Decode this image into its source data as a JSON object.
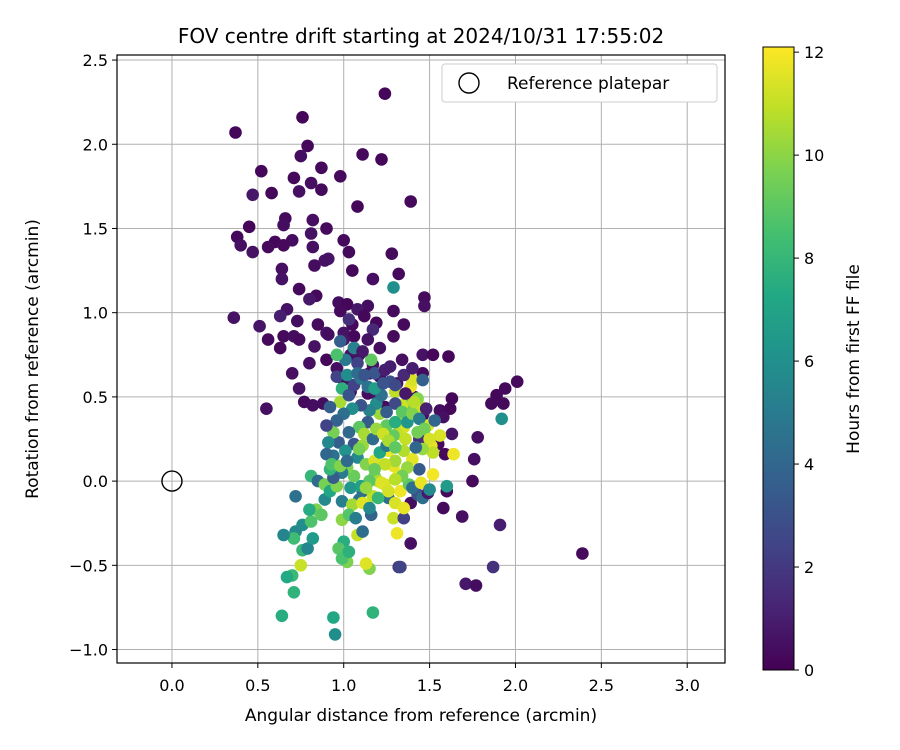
{
  "chart_data": {
    "type": "scatter",
    "title": "FOV centre drift starting at 2024/10/31 17:55:02",
    "xlabel": "Angular distance from reference (arcmin)",
    "ylabel": "Rotation from reference (arcmin)",
    "xlim": [
      -0.32,
      3.22
    ],
    "ylim": [
      -1.08,
      2.53
    ],
    "xticks": [
      0.0,
      0.5,
      1.0,
      1.5,
      2.0,
      2.5,
      3.0
    ],
    "xtick_labels": [
      "0.0",
      "0.5",
      "1.0",
      "1.5",
      "2.0",
      "2.5",
      "3.0"
    ],
    "yticks": [
      -1.0,
      -0.5,
      0.0,
      0.5,
      1.0,
      1.5,
      2.0,
      2.5
    ],
    "ytick_labels": [
      "−1.0",
      "−0.5",
      "0.0",
      "0.5",
      "1.0",
      "1.5",
      "2.0",
      "2.5"
    ],
    "grid": true,
    "legend": {
      "position": "top-right",
      "entries": [
        "Reference platepar"
      ]
    },
    "reference_point": {
      "x": 0.0,
      "y": 0.0,
      "label": "Reference platepar"
    },
    "colorbar": {
      "label": "Hours from first FF file",
      "min": 0,
      "max": 12.1,
      "ticks": [
        0,
        2,
        4,
        6,
        8,
        10,
        12
      ],
      "tick_labels": [
        "0",
        "2",
        "4",
        "6",
        "8",
        "10",
        "12"
      ],
      "colormap": "viridis"
    },
    "points": [
      [
        1.24,
        2.3,
        0.2
      ],
      [
        0.76,
        2.16,
        0.2
      ],
      [
        0.37,
        2.07,
        0.2
      ],
      [
        0.79,
        1.99,
        0.2
      ],
      [
        1.11,
        1.94,
        0.3
      ],
      [
        1.22,
        1.91,
        0.2
      ],
      [
        0.75,
        1.93,
        0.4
      ],
      [
        0.52,
        1.84,
        0.2
      ],
      [
        0.87,
        1.86,
        0.3
      ],
      [
        0.71,
        1.8,
        0.3
      ],
      [
        0.98,
        1.81,
        0.3
      ],
      [
        0.47,
        1.7,
        0.8
      ],
      [
        0.58,
        1.71,
        0.2
      ],
      [
        0.74,
        1.72,
        0.5
      ],
      [
        0.87,
        1.73,
        0.3
      ],
      [
        0.81,
        1.77,
        0.5
      ],
      [
        1.39,
        1.66,
        0.3
      ],
      [
        1.08,
        1.63,
        0.2
      ],
      [
        0.66,
        1.56,
        0.3
      ],
      [
        0.82,
        1.55,
        0.5
      ],
      [
        0.65,
        1.52,
        0.4
      ],
      [
        0.9,
        1.5,
        0.3
      ],
      [
        0.45,
        1.51,
        0.2
      ],
      [
        0.81,
        1.47,
        0.6
      ],
      [
        0.38,
        1.45,
        0.2
      ],
      [
        0.6,
        1.42,
        0.2
      ],
      [
        0.7,
        1.43,
        0.4
      ],
      [
        0.65,
        1.4,
        0.3
      ],
      [
        0.4,
        1.4,
        0.5
      ],
      [
        0.47,
        1.36,
        0.6
      ],
      [
        0.56,
        1.39,
        0.3
      ],
      [
        0.82,
        1.39,
        0.5
      ],
      [
        1.0,
        1.43,
        0.3
      ],
      [
        0.91,
        1.32,
        0.7
      ],
      [
        1.03,
        1.36,
        0.3
      ],
      [
        0.83,
        1.28,
        0.4
      ],
      [
        1.28,
        1.35,
        0.3
      ],
      [
        0.89,
        1.31,
        0.6
      ],
      [
        0.64,
        1.26,
        0.5
      ],
      [
        1.32,
        1.23,
        0.3
      ],
      [
        1.05,
        1.25,
        0.2
      ],
      [
        0.64,
        1.2,
        0.6
      ],
      [
        1.17,
        1.2,
        0.5
      ],
      [
        0.74,
        1.14,
        0.3
      ],
      [
        1.29,
        1.15,
        6.0
      ],
      [
        0.84,
        1.1,
        0.3
      ],
      [
        1.47,
        1.09,
        0.3
      ],
      [
        0.8,
        1.08,
        0.8
      ],
      [
        0.97,
        1.06,
        0.4
      ],
      [
        1.02,
        1.05,
        0.2
      ],
      [
        1.14,
        1.04,
        0.4
      ],
      [
        0.98,
        1.01,
        0.3
      ],
      [
        1.08,
        1.02,
        0.8
      ],
      [
        1.12,
        0.98,
        0.2
      ],
      [
        1.29,
        1.01,
        0.3
      ],
      [
        1.47,
        1.04,
        0.5
      ],
      [
        0.67,
        1.02,
        0.6
      ],
      [
        0.73,
        0.95,
        0.4
      ],
      [
        1.05,
        0.93,
        0.3
      ],
      [
        1.19,
        0.94,
        0.2
      ],
      [
        0.36,
        0.97,
        0.6
      ],
      [
        0.63,
        0.98,
        1.0
      ],
      [
        0.85,
        0.93,
        0.3
      ],
      [
        1.03,
        0.96,
        1.6
      ],
      [
        0.51,
        0.92,
        0.7
      ],
      [
        0.9,
        0.88,
        0.7
      ],
      [
        1.17,
        0.9,
        1.4
      ],
      [
        1.0,
        0.88,
        0.6
      ],
      [
        1.35,
        0.93,
        0.3
      ],
      [
        1.06,
        0.86,
        0.2
      ],
      [
        0.65,
        0.86,
        0.3
      ],
      [
        0.71,
        0.86,
        0.4
      ],
      [
        1.0,
        0.84,
        0.7
      ],
      [
        1.14,
        0.84,
        0.6
      ],
      [
        1.29,
        0.86,
        0.3
      ],
      [
        0.56,
        0.84,
        0.3
      ],
      [
        0.74,
        0.84,
        0.3
      ],
      [
        0.63,
        0.79,
        0.2
      ],
      [
        0.83,
        0.8,
        0.6
      ],
      [
        1.06,
        0.79,
        0.2
      ],
      [
        1.21,
        0.79,
        0.4
      ],
      [
        1.04,
        0.75,
        0.5
      ],
      [
        1.09,
        0.75,
        0.5
      ],
      [
        1.46,
        0.75,
        0.6
      ],
      [
        1.52,
        0.75,
        0.2
      ],
      [
        1.61,
        0.74,
        0.2
      ],
      [
        1.34,
        0.72,
        0.5
      ],
      [
        0.9,
        0.72,
        0.2
      ],
      [
        0.8,
        0.7,
        0.5
      ],
      [
        1.17,
        0.69,
        0.7
      ],
      [
        1.27,
        0.68,
        1.0
      ],
      [
        0.96,
        0.67,
        0.5
      ],
      [
        0.7,
        0.64,
        0.5
      ],
      [
        1.15,
        0.64,
        0.4
      ],
      [
        1.21,
        0.62,
        0.5
      ],
      [
        1.46,
        0.64,
        0.3
      ],
      [
        1.0,
        0.6,
        0.6
      ],
      [
        1.31,
        0.58,
        0.3
      ],
      [
        0.74,
        0.55,
        0.6
      ],
      [
        1.04,
        0.53,
        0.3
      ],
      [
        1.14,
        0.52,
        0.4
      ],
      [
        1.63,
        0.49,
        0.2
      ],
      [
        1.41,
        0.5,
        0.5
      ],
      [
        1.2,
        0.49,
        0.8
      ],
      [
        1.89,
        0.51,
        0.2
      ],
      [
        1.93,
        0.46,
        0.3
      ],
      [
        0.77,
        0.47,
        0.3
      ],
      [
        0.82,
        0.45,
        0.4
      ],
      [
        0.88,
        0.46,
        0.4
      ],
      [
        0.55,
        0.43,
        0.5
      ],
      [
        1.24,
        0.44,
        0.3
      ],
      [
        1.56,
        0.42,
        0.4
      ],
      [
        1.62,
        0.43,
        0.2
      ],
      [
        1.58,
        0.38,
        0.5
      ],
      [
        1.46,
        0.39,
        0.4
      ],
      [
        2.01,
        0.59,
        0.3
      ],
      [
        1.94,
        0.55,
        0.3
      ],
      [
        1.86,
        0.46,
        0.3
      ],
      [
        1.92,
        0.37,
        6.0
      ],
      [
        1.78,
        0.26,
        0.5
      ],
      [
        1.63,
        0.28,
        0.7
      ],
      [
        1.55,
        0.22,
        0.3
      ],
      [
        1.44,
        0.25,
        1.6
      ],
      [
        1.59,
        0.16,
        0.3
      ],
      [
        1.76,
        0.13,
        0.5
      ],
      [
        1.75,
        0.0,
        0.3
      ],
      [
        1.6,
        -0.06,
        0.3
      ],
      [
        1.58,
        -0.16,
        0.3
      ],
      [
        1.69,
        -0.21,
        0.5
      ],
      [
        1.91,
        -0.26,
        1.0
      ],
      [
        1.87,
        -0.51,
        1.7
      ],
      [
        1.71,
        -0.61,
        0.8
      ],
      [
        1.77,
        -0.62,
        0.4
      ],
      [
        2.39,
        -0.43,
        0.3
      ],
      [
        1.39,
        -0.37,
        0.5
      ],
      [
        1.32,
        -0.51,
        2.0
      ],
      [
        1.33,
        -0.51,
        2.4
      ],
      [
        1.15,
        -0.52,
        9.8
      ],
      [
        1.13,
        -0.49,
        11.5
      ],
      [
        1.17,
        -0.78,
        7.8
      ],
      [
        0.95,
        -0.91,
        5.9
      ],
      [
        0.94,
        -0.81,
        7.2
      ],
      [
        0.71,
        -0.66,
        7.8
      ],
      [
        0.64,
        -0.8,
        7.5
      ],
      [
        0.7,
        -0.56,
        8.1
      ],
      [
        0.72,
        -0.3,
        5.6
      ],
      [
        0.76,
        -0.26,
        5.8
      ],
      [
        0.71,
        -0.34,
        8.3
      ],
      [
        0.67,
        -0.57,
        7.3
      ],
      [
        0.75,
        -0.5,
        11.1
      ],
      [
        0.65,
        -0.32,
        5.4
      ],
      [
        0.76,
        -0.41,
        8.0
      ],
      [
        0.79,
        -0.4,
        5.5
      ],
      [
        0.82,
        -0.34,
        6.5
      ],
      [
        0.81,
        -0.24,
        8.7
      ],
      [
        0.84,
        -0.17,
        9.7
      ],
      [
        0.87,
        -0.2,
        9.0
      ],
      [
        0.8,
        -0.17,
        7.4
      ],
      [
        0.72,
        -0.09,
        4.5
      ],
      [
        0.81,
        0.03,
        8.0
      ],
      [
        0.85,
        0.0,
        4.2
      ],
      [
        0.89,
        -0.02,
        9.6
      ],
      [
        0.89,
        -0.11,
        5.6
      ],
      [
        0.92,
        -0.06,
        7.2
      ],
      [
        0.96,
        -0.03,
        9.8
      ],
      [
        0.99,
        -0.12,
        5.2
      ],
      [
        1.04,
        -0.04,
        6.3
      ],
      [
        0.99,
        -0.23,
        10.0
      ],
      [
        1.0,
        -0.36,
        7.5
      ],
      [
        1.02,
        -0.48,
        9.7
      ],
      [
        0.97,
        -0.4,
        8.9
      ],
      [
        0.99,
        -0.46,
        8.6
      ],
      [
        1.03,
        -0.42,
        7.7
      ],
      [
        1.08,
        -0.32,
        11.0
      ],
      [
        1.11,
        -0.3,
        4.3
      ],
      [
        1.16,
        -0.2,
        3.8
      ],
      [
        1.11,
        -0.06,
        3.9
      ],
      [
        1.17,
        -0.09,
        10.9
      ],
      [
        1.26,
        -0.1,
        4.4
      ],
      [
        1.3,
        -0.13,
        11.4
      ],
      [
        1.33,
        -0.06,
        11.8
      ],
      [
        1.29,
        -0.22,
        11.1
      ],
      [
        1.31,
        -0.31,
        11.8
      ],
      [
        1.35,
        -0.22,
        2.3
      ],
      [
        1.39,
        -0.13,
        0.4
      ],
      [
        1.43,
        -0.08,
        3.0
      ],
      [
        1.38,
        -0.02,
        9.0
      ],
      [
        1.32,
        0.04,
        11.9
      ],
      [
        1.29,
        0.09,
        11.6
      ],
      [
        1.24,
        -0.02,
        11.4
      ],
      [
        1.18,
        0.03,
        9.6
      ],
      [
        1.26,
        0.18,
        11.9
      ],
      [
        1.4,
        0.13,
        11.6
      ],
      [
        1.44,
        0.07,
        3.4
      ],
      [
        1.46,
        -0.1,
        4.3
      ],
      [
        1.49,
        -0.07,
        0.8
      ],
      [
        1.52,
        0.04,
        11.9
      ],
      [
        1.56,
        0.27,
        11.4
      ],
      [
        1.51,
        0.21,
        11.7
      ],
      [
        1.49,
        0.33,
        11.5
      ],
      [
        1.43,
        0.29,
        9.5
      ],
      [
        1.45,
        0.44,
        11.2
      ],
      [
        1.43,
        0.49,
        9.9
      ],
      [
        1.38,
        0.46,
        9.5
      ],
      [
        1.34,
        0.45,
        11.2
      ],
      [
        1.39,
        0.56,
        11.8
      ],
      [
        1.4,
        0.6,
        11.4
      ],
      [
        1.3,
        0.53,
        10.9
      ],
      [
        1.27,
        0.59,
        3.0
      ],
      [
        1.34,
        0.37,
        11.2
      ],
      [
        1.35,
        0.32,
        11.3
      ],
      [
        1.31,
        0.28,
        11.0
      ],
      [
        1.25,
        0.33,
        9.1
      ],
      [
        1.21,
        0.4,
        10.3
      ],
      [
        1.19,
        0.46,
        5.8
      ],
      [
        1.22,
        0.51,
        4.5
      ],
      [
        1.15,
        0.42,
        5.3
      ],
      [
        1.1,
        0.45,
        3.1
      ],
      [
        1.05,
        0.43,
        5.9
      ],
      [
        1.0,
        0.4,
        4.4
      ],
      [
        0.98,
        0.47,
        10.5
      ],
      [
        0.99,
        0.55,
        7.7
      ],
      [
        1.03,
        0.51,
        3.1
      ],
      [
        1.06,
        0.57,
        2.4
      ],
      [
        1.1,
        0.61,
        4.8
      ],
      [
        1.14,
        0.56,
        4.5
      ],
      [
        1.18,
        0.64,
        3.2
      ],
      [
        1.16,
        0.72,
        9.1
      ],
      [
        1.08,
        0.7,
        2.4
      ],
      [
        1.01,
        0.72,
        4.9
      ],
      [
        0.96,
        0.75,
        8.6
      ],
      [
        0.98,
        0.83,
        3.7
      ],
      [
        1.06,
        0.79,
        5.3
      ],
      [
        1.11,
        0.77,
        0.8
      ],
      [
        0.91,
        0.87,
        0.4
      ],
      [
        0.96,
        0.62,
        2.4
      ],
      [
        1.02,
        0.63,
        5.8
      ],
      [
        1.08,
        0.64,
        4.3
      ],
      [
        1.12,
        0.63,
        3.2
      ],
      [
        1.18,
        0.55,
        6.7
      ],
      [
        1.23,
        0.58,
        3.2
      ],
      [
        1.24,
        0.66,
        1.0
      ],
      [
        1.3,
        0.57,
        2.7
      ],
      [
        1.35,
        0.63,
        1.4
      ],
      [
        1.4,
        0.67,
        1.0
      ],
      [
        1.46,
        0.6,
        3.7
      ],
      [
        1.3,
        0.46,
        2.7
      ],
      [
        1.25,
        0.41,
        3.6
      ],
      [
        1.14,
        0.35,
        3.5
      ],
      [
        1.09,
        0.32,
        9.0
      ],
      [
        1.03,
        0.29,
        4.1
      ],
      [
        1.06,
        0.22,
        3.2
      ],
      [
        1.11,
        0.21,
        10.3
      ],
      [
        1.08,
        0.14,
        5.7
      ],
      [
        1.13,
        0.1,
        9.8
      ],
      [
        1.18,
        0.12,
        11.4
      ],
      [
        1.21,
        0.17,
        7.2
      ],
      [
        1.25,
        0.21,
        4.8
      ],
      [
        1.29,
        0.27,
        9.2
      ],
      [
        1.36,
        0.25,
        11.0
      ],
      [
        1.35,
        0.18,
        10.7
      ],
      [
        1.3,
        0.12,
        10.4
      ],
      [
        1.24,
        0.1,
        11.0
      ],
      [
        1.2,
        0.0,
        10.6
      ],
      [
        1.15,
        0.0,
        9.0
      ],
      [
        1.1,
        -0.03,
        6.8
      ],
      [
        1.06,
        0.03,
        9.3
      ],
      [
        1.02,
        0.08,
        9.7
      ],
      [
        0.99,
        0.05,
        5.0
      ],
      [
        0.94,
        0.02,
        3.5
      ],
      [
        0.92,
        0.07,
        7.9
      ],
      [
        0.94,
        0.15,
        4.5
      ],
      [
        0.97,
        0.23,
        3.6
      ],
      [
        1.01,
        0.18,
        6.1
      ],
      [
        0.94,
        0.29,
        9.6
      ],
      [
        0.96,
        0.36,
        3.8
      ],
      [
        0.92,
        0.44,
        3.6
      ],
      [
        0.9,
        0.33,
        2.4
      ],
      [
        0.91,
        0.23,
        5.6
      ],
      [
        0.9,
        0.16,
        4.0
      ],
      [
        0.93,
        0.1,
        8.7
      ],
      [
        0.98,
        0.09,
        9.8
      ],
      [
        1.02,
        0.12,
        4.2
      ],
      [
        1.09,
        0.19,
        9.6
      ],
      [
        1.12,
        0.28,
        10.5
      ],
      [
        1.17,
        0.25,
        4.2
      ],
      [
        1.19,
        0.31,
        10.2
      ],
      [
        1.23,
        0.28,
        11.2
      ],
      [
        1.26,
        0.24,
        10.6
      ],
      [
        1.3,
        0.2,
        9.1
      ],
      [
        1.3,
        0.35,
        7.5
      ],
      [
        1.34,
        0.41,
        9.0
      ],
      [
        1.37,
        0.35,
        6.3
      ],
      [
        1.4,
        0.4,
        9.8
      ],
      [
        1.44,
        0.37,
        5.1
      ],
      [
        1.47,
        0.31,
        9.5
      ],
      [
        1.5,
        0.25,
        11.3
      ],
      [
        1.52,
        0.17,
        10.9
      ],
      [
        1.46,
        0.19,
        10.2
      ],
      [
        1.42,
        0.2,
        4.0
      ],
      [
        1.37,
        0.08,
        10.2
      ],
      [
        1.34,
        0.03,
        9.5
      ],
      [
        1.3,
        0.01,
        10.8
      ],
      [
        1.22,
        -0.01,
        11.5
      ],
      [
        1.18,
        0.07,
        9.3
      ],
      [
        1.13,
        -0.04,
        10.2
      ],
      [
        1.09,
        -0.11,
        4.6
      ],
      [
        1.05,
        -0.14,
        10.4
      ],
      [
        1.03,
        -0.2,
        8.8
      ],
      [
        1.07,
        -0.22,
        5.1
      ],
      [
        1.11,
        -0.13,
        11.5
      ],
      [
        1.15,
        -0.16,
        5.6
      ],
      [
        1.2,
        -0.1,
        8.0
      ],
      [
        1.26,
        -0.06,
        11.3
      ],
      [
        1.35,
        -0.16,
        11.7
      ],
      [
        1.4,
        -0.04,
        4.3
      ],
      [
        1.45,
        -0.01,
        11.7
      ],
      [
        1.5,
        -0.05,
        5.7
      ],
      [
        1.6,
        -0.03,
        6.5
      ],
      [
        1.64,
        0.16,
        11.8
      ],
      [
        1.53,
        0.36,
        4.0
      ],
      [
        1.48,
        0.43,
        1.1
      ],
      [
        1.41,
        0.47,
        10.8
      ],
      [
        1.36,
        0.52,
        0.8
      ]
    ]
  }
}
